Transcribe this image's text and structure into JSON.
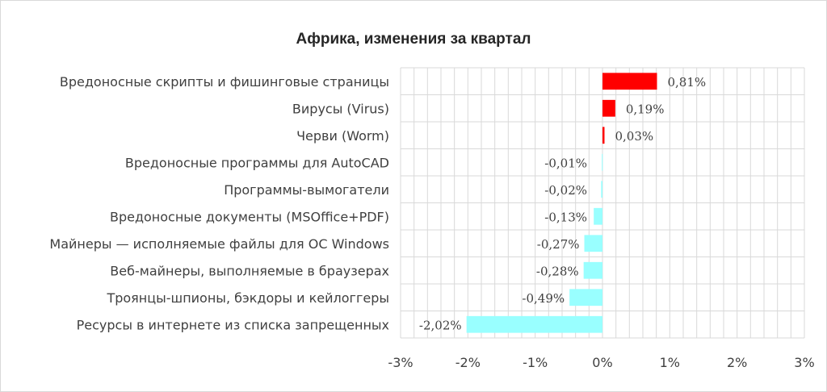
{
  "chart_data": {
    "type": "bar",
    "orientation": "horizontal",
    "title": "Африка, изменения за квартал",
    "categories": [
      "Вредоносные скрипты и фишинговые страницы",
      "Вирусы (Virus)",
      "Черви (Worm)",
      "Вредоносные программы для AutoCAD",
      "Программы-вымогатели",
      "Вредоносные документы (MSOffice+PDF)",
      "Майнеры — исполняемые файлы для ОС Windows",
      "Веб-майнеры, выполняемые в браузерах",
      "Троянцы-шпионы, бэкдоры и кейлоггеры",
      "Ресурсы в интернете из списка запрещенных"
    ],
    "values": [
      0.81,
      0.19,
      0.03,
      -0.01,
      -0.02,
      -0.13,
      -0.27,
      -0.28,
      -0.49,
      -2.02
    ],
    "data_labels": [
      "0,81%",
      "0,19%",
      "0,03%",
      "-0,01%",
      "-0,02%",
      "-0,13%",
      "-0,27%",
      "-0,28%",
      "-0,49%",
      "-2,02%"
    ],
    "xlim": [
      -3,
      3
    ],
    "x_ticks": [
      -3,
      -2,
      -1,
      0,
      1,
      2,
      3
    ],
    "x_tick_labels": [
      "-3%",
      "-2%",
      "-1%",
      "0%",
      "1%",
      "2%",
      "3%"
    ],
    "grid": true,
    "colors": {
      "positive": "#ff0000",
      "negative": "#99ffff",
      "grid": "#d9d9d9"
    }
  }
}
